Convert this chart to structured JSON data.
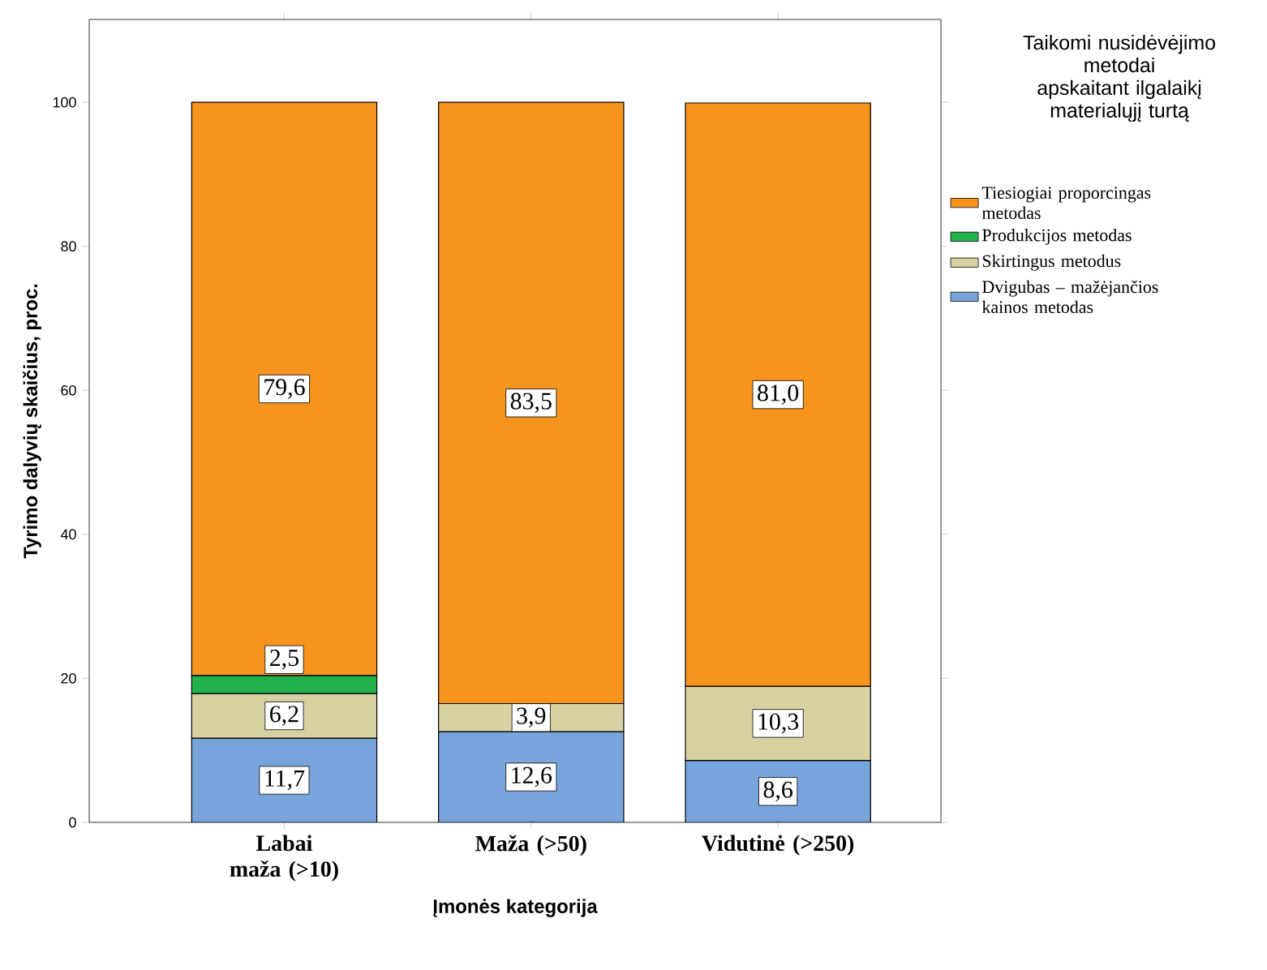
{
  "chart_data": {
    "type": "bar",
    "stacked": true,
    "xlabel": "Įmonės kategorija",
    "ylabel": "Tyrimo dalyvių skaičius, proc.",
    "legend_title": "Taikomi nusidėvėjimo metodai apskaitant ilgalaikį materialųjį turtą",
    "legend": "right",
    "categories": [
      "Labai maža (>10)",
      "Maža (>50)",
      "Vidutinė (>250)"
    ],
    "ylim": [
      0,
      111.5
    ],
    "yticks": [
      0,
      20,
      40,
      60,
      80,
      100
    ],
    "series": [
      {
        "name": "Dvigubas – mažėjančios kainos metodas",
        "color": "#78a6dc",
        "values": [
          11.7,
          12.6,
          8.6
        ],
        "value_labels": [
          "11,7",
          "12,6",
          "8,6"
        ]
      },
      {
        "name": "Skirtingus metodus",
        "color": "#d8d2a2",
        "values": [
          6.2,
          3.9,
          10.3
        ],
        "value_labels": [
          "6,2",
          "3,9",
          "10,3"
        ]
      },
      {
        "name": "Produkcijos metodas",
        "color": "#22b24c",
        "values": [
          2.5,
          null,
          null
        ],
        "value_labels": [
          "2,5",
          null,
          null
        ]
      },
      {
        "name": "Tiesiogiai proporcingas metodas",
        "color": "#f7941e",
        "values": [
          79.6,
          83.5,
          81.0
        ],
        "value_labels": [
          "79,6",
          "83,5",
          "81,0"
        ]
      }
    ]
  }
}
